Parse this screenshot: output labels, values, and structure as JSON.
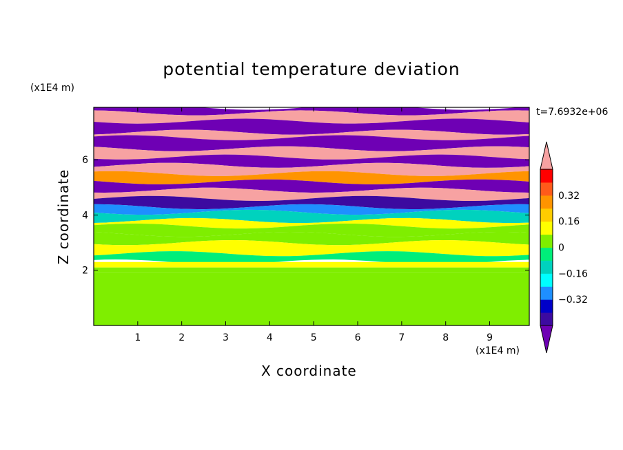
{
  "chart_data": {
    "type": "heatmap",
    "title": "potential temperature deviation",
    "xlabel": "X coordinate",
    "ylabel": "Z coordinate",
    "x_unit": "(x1E4 m)",
    "y_unit": "(x1E4 m)",
    "time_label": "t=7.6932e+06",
    "xlim": [
      0,
      9.9
    ],
    "ylim": [
      0,
      7.9
    ],
    "x_ticks": [
      "1",
      "2",
      "3",
      "4",
      "5",
      "6",
      "7",
      "8",
      "9"
    ],
    "y_ticks": [
      "2",
      "4",
      "6"
    ],
    "colorbar": {
      "levels": [
        -0.48,
        -0.4,
        -0.32,
        -0.24,
        -0.16,
        -0.08,
        0,
        0.08,
        0.16,
        0.24,
        0.32,
        0.4,
        0.48
      ],
      "tick_labels": [
        "0.32",
        "0.16",
        "0",
        "−0.16",
        "−0.32"
      ],
      "tick_values": [
        0.32,
        0.16,
        0,
        -0.16,
        -0.32
      ],
      "colors_high_to_low": [
        "#ff0000",
        "#ff5a1a",
        "#ff9400",
        "#ffcc00",
        "#ffff00",
        "#7fee00",
        "#00ee7a",
        "#00d2be",
        "#00ffff",
        "#1e8fff",
        "#0000c8",
        "#3c0aa0"
      ],
      "over_color": "#f7a2a2",
      "under_color": "#6e00b4"
    },
    "bands": [
      {
        "z0": 7.7,
        "z1": 7.9,
        "value": -0.5
      },
      {
        "z0": 7.4,
        "z1": 7.7,
        "value": 0.5
      },
      {
        "z0": 7.0,
        "z1": 7.4,
        "value": -0.5
      },
      {
        "z0": 6.8,
        "z1": 7.0,
        "value": 0.5
      },
      {
        "z0": 6.4,
        "z1": 6.8,
        "value": -0.5
      },
      {
        "z0": 6.1,
        "z1": 6.4,
        "value": 0.5
      },
      {
        "z0": 5.8,
        "z1": 6.1,
        "value": -0.5
      },
      {
        "z0": 5.5,
        "z1": 5.8,
        "value": 0.5
      },
      {
        "z0": 5.2,
        "z1": 5.5,
        "value": 0.3
      },
      {
        "z0": 4.9,
        "z1": 5.2,
        "value": -0.5
      },
      {
        "z0": 4.6,
        "z1": 4.9,
        "value": 0.5
      },
      {
        "z0": 4.3,
        "z1": 4.6,
        "value": -0.45
      },
      {
        "z0": 4.1,
        "z1": 4.3,
        "value": -0.3
      },
      {
        "z0": 3.8,
        "z1": 4.1,
        "value": -0.1
      },
      {
        "z0": 3.6,
        "z1": 3.8,
        "value": 0.1
      },
      {
        "z0": 3.3,
        "z1": 3.6,
        "value": 0.02
      },
      {
        "z0": 3.0,
        "z1": 3.3,
        "value": 0.05
      },
      {
        "z0": 2.6,
        "z1": 3.0,
        "value": 0.12
      },
      {
        "z0": 2.3,
        "z1": 2.6,
        "value": -0.04
      },
      {
        "z0": 2.1,
        "z1": 2.3,
        "value": 0.14
      },
      {
        "z0": 1.9,
        "z1": 2.1,
        "value": 0.05
      },
      {
        "z0": 0,
        "z1": 1.9,
        "value": 0.02
      }
    ],
    "legend_placement": "right"
  }
}
